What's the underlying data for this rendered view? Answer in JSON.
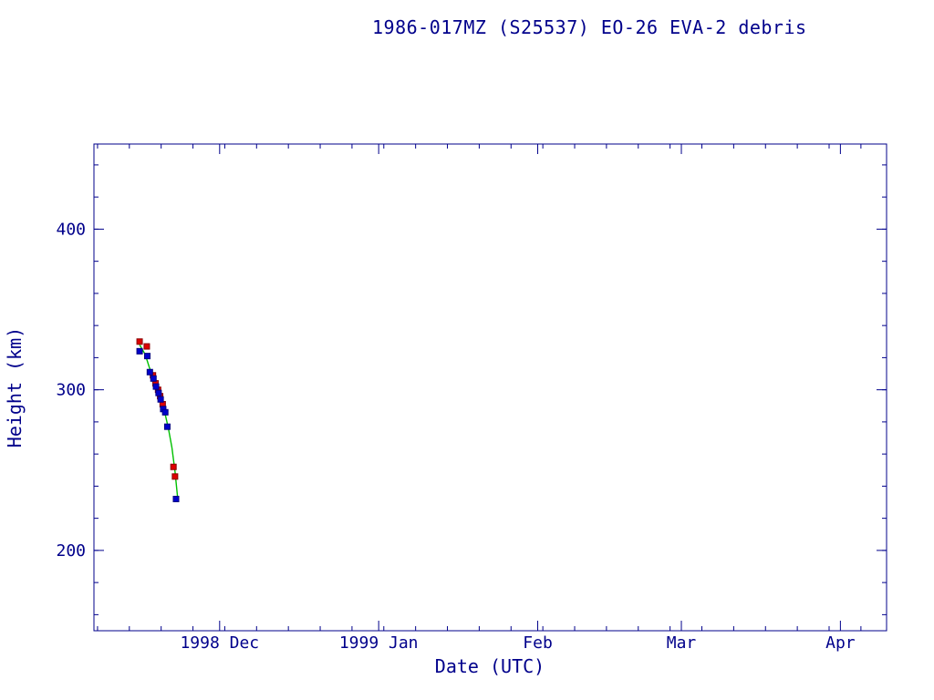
{
  "colors": {
    "axis": "#00008b",
    "text": "#00008b",
    "apogee_marker": "#dd0000",
    "apogee_marker_edge": "#8b0000",
    "perigee_marker": "#0000cc",
    "perigee_marker_edge": "#000080",
    "fit_line": "#00c000"
  },
  "chart_data": {
    "type": "scatter",
    "title": "1986-017MZ (S25537) EO-26 EVA-2 debris",
    "xlabel": "Date (UTC)",
    "ylabel": "Height (km)",
    "x_unit": "days since 1998 Nov 1.0",
    "xlim": [
      5.5,
      160
    ],
    "ylim": [
      150,
      453
    ],
    "grid": false,
    "legend": "none",
    "x_ticks": [
      {
        "value": 30,
        "label": "1998 Dec"
      },
      {
        "value": 61,
        "label": "1999 Jan"
      },
      {
        "value": 92,
        "label": "Feb"
      },
      {
        "value": 120,
        "label": "Mar"
      },
      {
        "value": 151,
        "label": "Apr"
      }
    ],
    "x_minor_step": 6.2,
    "y_ticks": [
      {
        "value": 200,
        "label": "200"
      },
      {
        "value": 300,
        "label": "300"
      },
      {
        "value": 400,
        "label": "400"
      }
    ],
    "y_minor_step": 20,
    "series": [
      {
        "name": "fit-line",
        "kind": "line",
        "color_key": "fit_line",
        "points": [
          [
            14.4,
            328
          ],
          [
            15.5,
            322
          ],
          [
            16.3,
            314
          ],
          [
            17.0,
            308
          ],
          [
            17.8,
            301
          ],
          [
            18.6,
            293
          ],
          [
            19.3,
            286
          ],
          [
            20.0,
            276
          ],
          [
            20.7,
            264
          ],
          [
            21.3,
            249
          ],
          [
            21.8,
            233
          ]
        ]
      },
      {
        "name": "height-red",
        "kind": "marker",
        "marker": "square",
        "color_key": "apogee_marker",
        "edge_key": "apogee_marker_edge",
        "points": [
          [
            14.4,
            330
          ],
          [
            15.8,
            327
          ],
          [
            17.0,
            309
          ],
          [
            17.5,
            304
          ],
          [
            18.0,
            300
          ],
          [
            18.4,
            296
          ],
          [
            18.9,
            291
          ],
          [
            21.0,
            252
          ],
          [
            21.3,
            246
          ]
        ]
      },
      {
        "name": "height-blue",
        "kind": "marker",
        "marker": "square",
        "color_key": "perigee_marker",
        "edge_key": "perigee_marker_edge",
        "points": [
          [
            14.4,
            324
          ],
          [
            15.9,
            321
          ],
          [
            16.4,
            311
          ],
          [
            17.1,
            307
          ],
          [
            17.6,
            302
          ],
          [
            18.1,
            298
          ],
          [
            18.5,
            294
          ],
          [
            19.0,
            288
          ],
          [
            19.4,
            286
          ],
          [
            19.8,
            277
          ],
          [
            21.5,
            232
          ]
        ]
      }
    ]
  }
}
